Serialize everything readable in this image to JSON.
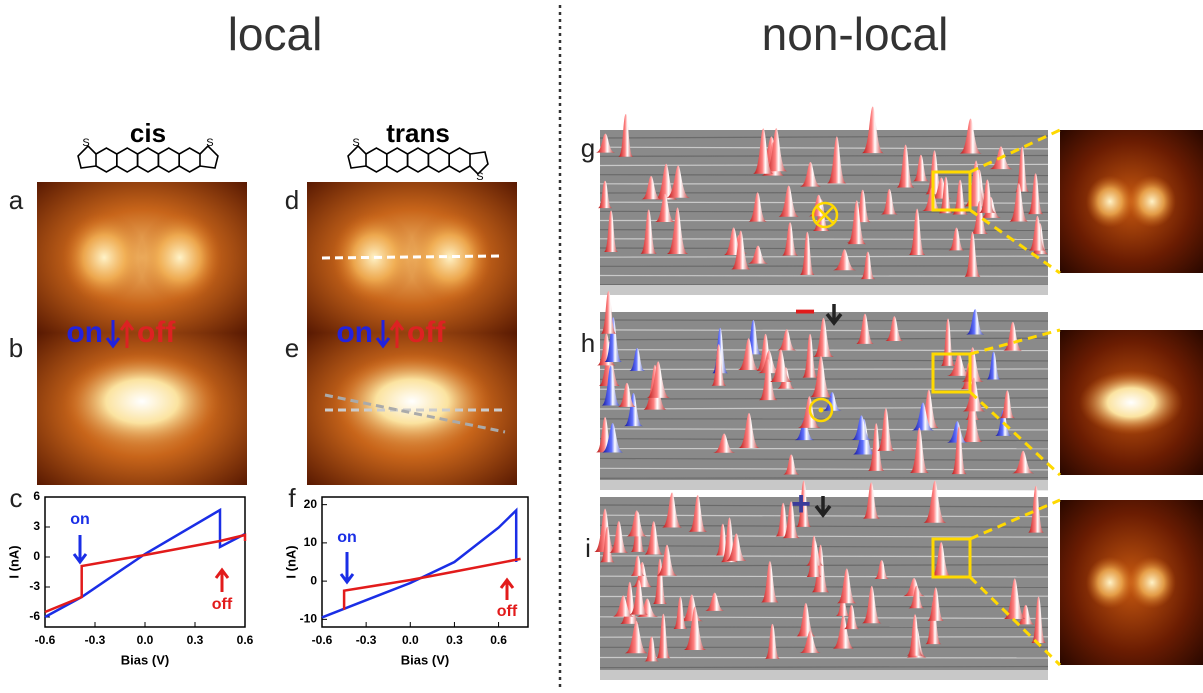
{
  "header": {
    "left": "local",
    "right": "non-local"
  },
  "molecules": [
    "cis",
    "trans"
  ],
  "atom_label": "S",
  "panel_labels": [
    "a",
    "b",
    "c",
    "d",
    "e",
    "f",
    "g",
    "h",
    "i"
  ],
  "switch_labels": {
    "on": "on",
    "off": "off"
  },
  "field_signs": [
    "−",
    "+"
  ],
  "chart_data": [
    {
      "type": "line",
      "xlabel": "Bias (V)",
      "ylabel": "I (nA)",
      "xlim": [
        -0.6,
        0.6
      ],
      "ylim": [
        -7,
        6
      ],
      "xticks": [
        -0.6,
        -0.3,
        {
          "value": 0,
          "label": "0.0"
        },
        0.3,
        0.6
      ],
      "yticks": [
        -6,
        -3,
        0,
        3,
        6
      ],
      "annotations": [
        "on",
        "off"
      ],
      "series": [
        {
          "color": "#1a2ee6",
          "x": [
            -0.6,
            -0.38,
            0,
            0.45,
            0.45,
            0.6
          ],
          "values": [
            -6,
            -4,
            0.3,
            4.7,
            1.0,
            2.3
          ]
        },
        {
          "color": "#e21b1b",
          "x": [
            0.6,
            0.6,
            0.45,
            0,
            -0.38,
            -0.38,
            -0.6
          ],
          "values": [
            1.6,
            2.2,
            1.6,
            0.2,
            -0.9,
            -4,
            -5.5
          ]
        }
      ]
    },
    {
      "type": "line",
      "xlabel": "Bias (V)",
      "ylabel": "I (nA)",
      "xlim": [
        -0.6,
        0.8
      ],
      "ylim": [
        -12,
        22
      ],
      "xticks": [
        -0.6,
        -0.3,
        {
          "value": 0,
          "label": "0.0"
        },
        0.3,
        0.6
      ],
      "yticks": [
        -10,
        0,
        10,
        20
      ],
      "annotations": [
        "on",
        "off"
      ],
      "series": [
        {
          "color": "#1a2ee6",
          "x": [
            -0.6,
            -0.3,
            0,
            0.3,
            0.6,
            0.72,
            0.72
          ],
          "values": [
            -9.5,
            -5,
            -0.5,
            5,
            14,
            18.5,
            5
          ]
        },
        {
          "color": "#e21b1b",
          "x": [
            0.75,
            0.3,
            0,
            -0.45,
            -0.45
          ],
          "values": [
            5.8,
            2.5,
            0.3,
            -2.5,
            -7.5
          ]
        }
      ]
    }
  ]
}
